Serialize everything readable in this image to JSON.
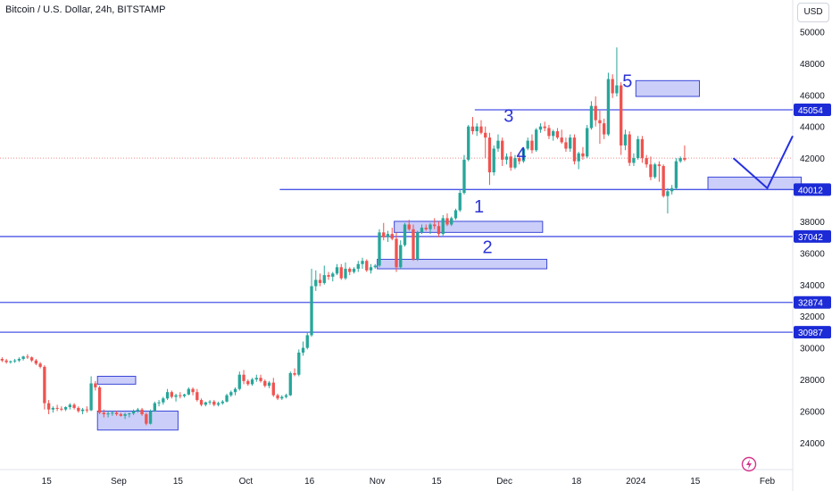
{
  "header": {
    "title": "Bitcoin / U.S. Dollar, 24h, BITSTAMP",
    "currency": "USD"
  },
  "colors": {
    "up": "#26a69a",
    "down": "#ef5350",
    "level": "#4a55e6",
    "zone_fill": "#b9bdf6",
    "zone_stroke": "#3b47d9",
    "label": "#2b34d6",
    "badge_bg": "#1c2bd6",
    "dotted": "#f08b8b",
    "logo": "#d6338a"
  },
  "logo_icon": "lightning-bolt-icon",
  "chart_data": {
    "type": "candlestick",
    "title": "Bitcoin / U.S. Dollar, 24h, BITSTAMP",
    "y_unit": "USD",
    "ylim": [
      22300,
      52000
    ],
    "y_ticks": [
      24000,
      26000,
      28000,
      30000,
      32000,
      34000,
      36000,
      38000,
      40000,
      42000,
      44000,
      46000,
      48000,
      50000
    ],
    "x_tick_labels": [
      {
        "label": "15",
        "date": "2023-08-15"
      },
      {
        "label": "Sep",
        "date": "2023-09-01"
      },
      {
        "label": "15",
        "date": "2023-09-15"
      },
      {
        "label": "Oct",
        "date": "2023-10-01"
      },
      {
        "label": "16",
        "date": "2023-10-16"
      },
      {
        "label": "Nov",
        "date": "2023-11-01"
      },
      {
        "label": "15",
        "date": "2023-11-15"
      },
      {
        "label": "Dec",
        "date": "2023-12-01"
      },
      {
        "label": "18",
        "date": "2023-12-18"
      },
      {
        "label": "2024",
        "date": "2024-01-01"
      },
      {
        "label": "15",
        "date": "2024-01-15"
      },
      {
        "label": "Feb",
        "date": "2024-02-01"
      }
    ],
    "x_range": [
      "2023-08-04",
      "2024-02-07"
    ],
    "first_candle_date": "2023-08-04",
    "candles": [
      [
        29300,
        29400,
        29100,
        29200
      ],
      [
        29200,
        29300,
        29000,
        29100
      ],
      [
        29100,
        29200,
        29000,
        29150
      ],
      [
        29150,
        29300,
        29050,
        29200
      ],
      [
        29200,
        29400,
        29100,
        29300
      ],
      [
        29300,
        29500,
        29200,
        29450
      ],
      [
        29450,
        29600,
        29300,
        29400
      ],
      [
        29400,
        29450,
        29100,
        29200
      ],
      [
        29200,
        29300,
        28900,
        29000
      ],
      [
        29000,
        29100,
        28700,
        28800
      ],
      [
        28800,
        28900,
        26100,
        26500
      ],
      [
        26500,
        26700,
        25800,
        26100
      ],
      [
        26100,
        26300,
        25900,
        26200
      ],
      [
        26200,
        26400,
        26000,
        26150
      ],
      [
        26150,
        26300,
        26000,
        26100
      ],
      [
        26100,
        26300,
        26000,
        26250
      ],
      [
        26250,
        26500,
        26100,
        26400
      ],
      [
        26400,
        26500,
        26100,
        26200
      ],
      [
        26200,
        26300,
        25900,
        26000
      ],
      [
        26000,
        26200,
        25800,
        26100
      ],
      [
        26100,
        26300,
        25900,
        26050
      ],
      [
        26050,
        28200,
        26000,
        27750
      ],
      [
        27750,
        27900,
        27300,
        27500
      ],
      [
        27500,
        27600,
        25800,
        25900
      ],
      [
        25900,
        26100,
        25600,
        25800
      ],
      [
        25800,
        26000,
        25600,
        25850
      ],
      [
        25850,
        26000,
        25700,
        25900
      ],
      [
        25900,
        26000,
        25700,
        25800
      ],
      [
        25800,
        25900,
        25650,
        25700
      ],
      [
        25700,
        25900,
        25500,
        25800
      ],
      [
        25800,
        25900,
        25600,
        25850
      ],
      [
        25850,
        26100,
        25750,
        26000
      ],
      [
        26000,
        26200,
        25900,
        26100
      ],
      [
        26100,
        26200,
        25700,
        25800
      ],
      [
        25800,
        25900,
        25100,
        25200
      ],
      [
        25200,
        26100,
        25150,
        26000
      ],
      [
        26000,
        26600,
        25950,
        26500
      ],
      [
        26500,
        26700,
        26300,
        26550
      ],
      [
        26550,
        26900,
        26400,
        26800
      ],
      [
        26800,
        27400,
        26700,
        27200
      ],
      [
        27200,
        27300,
        26800,
        26900
      ],
      [
        26900,
        27100,
        26600,
        27000
      ],
      [
        27000,
        27200,
        26800,
        26950
      ],
      [
        26950,
        27100,
        26850,
        27050
      ],
      [
        27050,
        27500,
        27000,
        27400
      ],
      [
        27400,
        27500,
        27000,
        27200
      ],
      [
        27200,
        27400,
        26600,
        26700
      ],
      [
        26700,
        26800,
        26300,
        26400
      ],
      [
        26400,
        26600,
        26300,
        26550
      ],
      [
        26550,
        26700,
        26400,
        26600
      ],
      [
        26600,
        26700,
        26300,
        26400
      ],
      [
        26400,
        26600,
        26300,
        26500
      ],
      [
        26500,
        26700,
        26400,
        26600
      ],
      [
        26600,
        27100,
        26550,
        27000
      ],
      [
        27000,
        27300,
        26900,
        27200
      ],
      [
        27200,
        27500,
        27000,
        27400
      ],
      [
        27400,
        28500,
        27300,
        28300
      ],
      [
        28300,
        28600,
        27700,
        27900
      ],
      [
        27900,
        28000,
        27600,
        27700
      ],
      [
        27700,
        28100,
        27600,
        28000
      ],
      [
        28000,
        28300,
        27850,
        28100
      ],
      [
        28100,
        28300,
        27800,
        27900
      ],
      [
        27900,
        28000,
        27500,
        27600
      ],
      [
        27600,
        27900,
        27450,
        27800
      ],
      [
        27800,
        28100,
        26900,
        27000
      ],
      [
        27000,
        27100,
        26700,
        26800
      ],
      [
        26800,
        27000,
        26700,
        26900
      ],
      [
        26900,
        27100,
        26800,
        27000
      ],
      [
        27000,
        28500,
        26950,
        28400
      ],
      [
        28400,
        28700,
        28200,
        28300
      ],
      [
        28300,
        29900,
        28200,
        29700
      ],
      [
        29700,
        30400,
        29500,
        30000
      ],
      [
        30000,
        31000,
        29900,
        30800
      ],
      [
        30800,
        35000,
        30700,
        33900
      ],
      [
        33900,
        34900,
        33600,
        34300
      ],
      [
        34300,
        34700,
        33900,
        34100
      ],
      [
        34100,
        35200,
        34000,
        34600
      ],
      [
        34600,
        34800,
        34300,
        34500
      ],
      [
        34500,
        34800,
        34200,
        34700
      ],
      [
        34700,
        35300,
        34600,
        35100
      ],
      [
        35100,
        35300,
        34300,
        34400
      ],
      [
        34400,
        35400,
        34300,
        35000
      ],
      [
        35000,
        35100,
        34600,
        34800
      ],
      [
        34800,
        35100,
        34700,
        35000
      ],
      [
        35000,
        35500,
        34800,
        35300
      ],
      [
        35300,
        35700,
        35000,
        35500
      ],
      [
        35500,
        35600,
        34800,
        34900
      ],
      [
        34900,
        35300,
        34700,
        35100
      ],
      [
        35100,
        35300,
        35000,
        35200
      ],
      [
        35200,
        37500,
        35100,
        37300
      ],
      [
        37300,
        37900,
        36800,
        37000
      ],
      [
        37000,
        37400,
        36700,
        37200
      ],
      [
        37200,
        37600,
        36800,
        36900
      ],
      [
        36900,
        37300,
        34800,
        35100
      ],
      [
        35100,
        36800,
        35000,
        36500
      ],
      [
        36500,
        37900,
        36400,
        37800
      ],
      [
        37800,
        38100,
        37400,
        37500
      ],
      [
        37500,
        37800,
        35500,
        35600
      ],
      [
        35600,
        37400,
        35500,
        37300
      ],
      [
        37300,
        37800,
        37200,
        37600
      ],
      [
        37600,
        37800,
        37400,
        37500
      ],
      [
        37500,
        37900,
        37200,
        37800
      ],
      [
        37800,
        38200,
        37500,
        37700
      ],
      [
        37700,
        38000,
        37000,
        37200
      ],
      [
        37200,
        38400,
        37100,
        38200
      ],
      [
        38200,
        38500,
        37700,
        37800
      ],
      [
        37800,
        38300,
        37700,
        38200
      ],
      [
        38200,
        38800,
        38100,
        38700
      ],
      [
        38700,
        40000,
        38600,
        39800
      ],
      [
        39800,
        42200,
        39700,
        41900
      ],
      [
        41900,
        44100,
        41800,
        44000
      ],
      [
        44000,
        44600,
        43500,
        43700
      ],
      [
        43700,
        44200,
        43400,
        44000
      ],
      [
        44000,
        44400,
        43500,
        43600
      ],
      [
        43600,
        44000,
        42000,
        43300
      ],
      [
        43300,
        43600,
        40300,
        41100
      ],
      [
        41100,
        42800,
        40900,
        42600
      ],
      [
        42600,
        43500,
        42400,
        43100
      ],
      [
        43100,
        43300,
        41500,
        41900
      ],
      [
        41900,
        42300,
        41600,
        42100
      ],
      [
        42100,
        42400,
        41200,
        41400
      ],
      [
        41400,
        42200,
        41300,
        42000
      ],
      [
        42000,
        42300,
        41600,
        41800
      ],
      [
        41800,
        42700,
        41700,
        42600
      ],
      [
        42600,
        43300,
        42500,
        43100
      ],
      [
        43100,
        43500,
        42300,
        42500
      ],
      [
        42500,
        43900,
        42400,
        43800
      ],
      [
        43800,
        44200,
        43600,
        44000
      ],
      [
        44000,
        44300,
        43700,
        43900
      ],
      [
        43900,
        44100,
        43200,
        43400
      ],
      [
        43400,
        43800,
        43100,
        43700
      ],
      [
        43700,
        43900,
        43200,
        43300
      ],
      [
        43300,
        43800,
        42900,
        43000
      ],
      [
        43000,
        43300,
        42400,
        42600
      ],
      [
        42600,
        43500,
        42400,
        43300
      ],
      [
        43300,
        43500,
        41600,
        41800
      ],
      [
        41800,
        42400,
        41300,
        42300
      ],
      [
        42300,
        42700,
        41900,
        42100
      ],
      [
        42100,
        44100,
        42000,
        43900
      ],
      [
        43900,
        45600,
        43800,
        45300
      ],
      [
        45300,
        45900,
        44000,
        44400
      ],
      [
        44400,
        45000,
        42900,
        44200
      ],
      [
        44200,
        44500,
        43200,
        43500
      ],
      [
        43500,
        47400,
        43400,
        47000
      ],
      [
        47000,
        47300,
        45800,
        46100
      ],
      [
        46100,
        49000,
        45900,
        46600
      ],
      [
        46600,
        46800,
        42200,
        42800
      ],
      [
        42800,
        43800,
        42500,
        43500
      ],
      [
        43500,
        43700,
        41500,
        41700
      ],
      [
        41700,
        42300,
        41500,
        42000
      ],
      [
        42000,
        43400,
        41900,
        43200
      ],
      [
        43200,
        43400,
        41700,
        42000
      ],
      [
        42000,
        42200,
        41400,
        41600
      ],
      [
        41600,
        42100,
        40600,
        40800
      ],
      [
        40800,
        41700,
        40700,
        41600
      ],
      [
        41600,
        41800,
        40500,
        41500
      ],
      [
        41500,
        41600,
        39500,
        39600
      ],
      [
        39600,
        40100,
        38500,
        39900
      ],
      [
        39900,
        40300,
        39700,
        40100
      ],
      [
        40100,
        42000,
        40000,
        41800
      ],
      [
        41800,
        42100,
        41700,
        42000
      ],
      [
        42000,
        42800,
        41800,
        41900
      ]
    ],
    "horizontal_levels": [
      {
        "price": 45054,
        "label": "45054",
        "from_date": "2023-11-24"
      },
      {
        "price": 40012,
        "label": "40012",
        "from_date": "2023-10-09"
      },
      {
        "price": 37042,
        "label": "37042",
        "from_date": "2023-08-04"
      },
      {
        "price": 32874,
        "label": "32874",
        "from_date": "2023-08-04"
      },
      {
        "price": 30987,
        "label": "30987",
        "from_date": "2023-08-04"
      }
    ],
    "current_price_line": 42000,
    "zones": [
      {
        "date_from": "2023-08-27",
        "date_to": "2023-09-05",
        "price_low": 27700,
        "price_high": 28200
      },
      {
        "date_from": "2023-08-27",
        "date_to": "2023-09-15",
        "price_low": 24800,
        "price_high": 26000
      },
      {
        "date_from": "2023-11-05",
        "date_to": "2023-12-10",
        "price_low": 37300,
        "price_high": 38000
      },
      {
        "date_from": "2023-11-01",
        "date_to": "2023-12-11",
        "price_low": 35000,
        "price_high": 35600
      },
      {
        "date_from": "2024-01-01",
        "date_to": "2024-01-16",
        "price_low": 45900,
        "price_high": 46900
      },
      {
        "date_from": "2024-01-18",
        "date_to": "2024-02-09",
        "price_low": 40000,
        "price_high": 40800
      }
    ],
    "wave_labels": [
      {
        "text": "1",
        "date": "2023-11-25",
        "price": 38550
      },
      {
        "text": "2",
        "date": "2023-11-27",
        "price": 36000
      },
      {
        "text": "3",
        "date": "2023-12-02",
        "price": 44300
      },
      {
        "text": "4",
        "date": "2023-12-05",
        "price": 41900
      },
      {
        "text": "5",
        "date": "2023-12-30",
        "price": 46500
      }
    ],
    "projection_path": [
      {
        "date": "2024-01-24",
        "price": 42000
      },
      {
        "date": "2024-02-01",
        "price": 40100
      },
      {
        "date": "2024-02-07",
        "price": 43400
      }
    ]
  }
}
